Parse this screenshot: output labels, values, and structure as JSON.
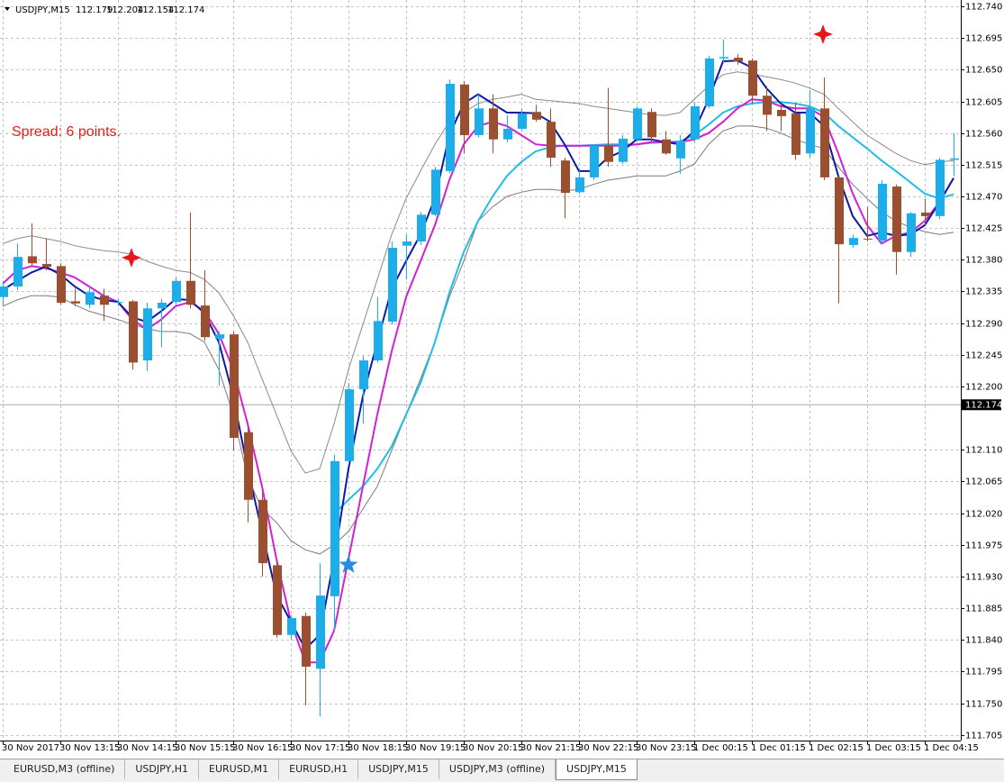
{
  "header": {
    "symbol": "USDJPY,M15",
    "ohlc": [
      112.179,
      112.204,
      112.154,
      112.174
    ]
  },
  "annotation": "Spread: 6 points.",
  "tabs": [
    "EURUSD,M3 (offline)",
    "USDJPY,H1",
    "EURUSD,M1",
    "EURUSD,H1",
    "USDJPY,M15",
    "USDJPY,M3 (offline)",
    "USDJPY,M15"
  ],
  "chart_data": {
    "type": "candlestick",
    "up_color": "#1caeea",
    "down_color": "#9c4f2e",
    "grid": true,
    "ylim": [
      111.697,
      112.749
    ],
    "yticks": [
      {
        "value": 112.74,
        "label": "112.740"
      },
      112.695,
      {
        "value": 112.65,
        "label": "112.650"
      },
      112.605,
      {
        "value": 112.56,
        "label": "112.560"
      },
      112.515,
      {
        "value": 112.47,
        "label": "112.470"
      },
      112.425,
      {
        "value": 112.38,
        "label": "112.380"
      },
      112.335,
      {
        "value": 112.29,
        "label": "112.290"
      },
      112.245,
      {
        "value": 112.2,
        "label": "112.200"
      },
      {
        "value": 112.11,
        "label": "112.110"
      },
      112.065,
      {
        "value": 112.02,
        "label": "112.020"
      },
      111.975,
      {
        "value": 111.93,
        "label": "111.930"
      },
      111.885,
      {
        "value": 111.84,
        "label": "111.840"
      },
      111.795,
      {
        "value": 111.75,
        "label": "111.750"
      },
      111.705
    ],
    "last_price": 112.174,
    "categories": [
      "30 Nov 2017",
      null,
      null,
      null,
      "30 Nov 13:15",
      null,
      null,
      null,
      "30 Nov 14:15",
      null,
      null,
      null,
      "30 Nov 15:15",
      null,
      null,
      null,
      "30 Nov 16:15",
      null,
      null,
      null,
      "30 Nov 17:15",
      null,
      null,
      null,
      "30 Nov 18:15",
      null,
      null,
      null,
      "30 Nov 19:15",
      null,
      null,
      null,
      "30 Nov 20:15",
      null,
      null,
      null,
      "30 Nov 21:15",
      null,
      null,
      null,
      "30 Nov 22:15",
      null,
      null,
      null,
      "30 Nov 23:15",
      null,
      null,
      null,
      "1 Dec 00:15",
      null,
      null,
      null,
      "1 Dec 01:15",
      null,
      null,
      null,
      "1 Dec 02:15",
      null,
      null,
      null,
      "1 Dec 03:15",
      null,
      null,
      null,
      "1 Dec 04:15",
      null,
      null
    ],
    "open": [
      112.327,
      112.342,
      112.385,
      112.374,
      112.371,
      112.321,
      112.316,
      112.329,
      112.319,
      112.321,
      112.237,
      112.311,
      112.32,
      112.35,
      112.315,
      112.268,
      112.274,
      112.135,
      112.039,
      111.946,
      111.847,
      111.874,
      111.799,
      111.902,
      112.094,
      112.196,
      112.237,
      112.292,
      112.4,
      112.406,
      112.444,
      112.506,
      112.629,
      112.557,
      112.595,
      112.551,
      112.566,
      112.59,
      112.576,
      112.521,
      112.476,
      112.497,
      112.542,
      112.519,
      112.551,
      112.59,
      112.551,
      112.524,
      112.551,
      112.598,
      112.666,
      112.667,
      112.663,
      112.613,
      112.593,
      112.588,
      112.531,
      112.595,
      112.497,
      112.401,
      112.41,
      112.407,
      112.484,
      112.391,
      112.447,
      112.442,
      112.522
    ],
    "high": [
      112.35,
      112.403,
      112.432,
      112.41,
      112.375,
      112.339,
      112.342,
      112.339,
      112.324,
      112.323,
      112.319,
      112.324,
      112.355,
      112.447,
      112.365,
      112.278,
      112.278,
      112.141,
      112.051,
      111.953,
      111.875,
      111.879,
      111.949,
      112.103,
      112.205,
      112.243,
      112.327,
      112.406,
      112.416,
      112.448,
      112.512,
      112.636,
      112.634,
      112.615,
      112.615,
      112.585,
      112.595,
      112.6,
      112.595,
      112.525,
      112.506,
      112.544,
      112.624,
      112.557,
      112.598,
      112.595,
      112.563,
      112.557,
      112.604,
      112.67,
      112.693,
      112.672,
      112.666,
      112.627,
      112.602,
      112.602,
      112.621,
      112.639,
      112.499,
      112.416,
      112.455,
      112.493,
      112.487,
      112.448,
      112.467,
      112.525,
      112.56
    ],
    "low": [
      112.314,
      112.337,
      112.371,
      112.365,
      112.316,
      112.314,
      112.311,
      112.293,
      112.314,
      112.224,
      112.222,
      112.256,
      112.316,
      112.311,
      112.265,
      112.201,
      112.109,
      112.007,
      111.93,
      111.843,
      111.84,
      111.747,
      111.731,
      111.853,
      112.09,
      112.147,
      112.234,
      112.288,
      112.352,
      112.401,
      112.442,
      112.503,
      112.531,
      112.554,
      112.531,
      112.547,
      112.563,
      112.576,
      112.512,
      112.439,
      112.474,
      112.493,
      112.512,
      112.516,
      112.548,
      112.547,
      112.529,
      112.502,
      112.547,
      112.595,
      112.659,
      112.657,
      112.602,
      112.563,
      112.563,
      112.522,
      112.525,
      112.493,
      112.318,
      112.397,
      112.406,
      112.403,
      112.359,
      112.384,
      112.429,
      112.438,
      112.499
    ],
    "close": [
      112.342,
      112.384,
      112.375,
      112.37,
      112.319,
      112.318,
      112.334,
      112.316,
      112.32,
      112.234,
      112.311,
      112.319,
      112.35,
      112.316,
      112.27,
      112.274,
      112.127,
      112.039,
      111.949,
      111.847,
      111.871,
      111.802,
      111.903,
      112.094,
      112.196,
      112.237,
      112.293,
      112.397,
      112.406,
      112.444,
      112.508,
      112.63,
      112.557,
      112.595,
      112.551,
      112.566,
      112.588,
      112.579,
      112.525,
      112.475,
      112.497,
      112.542,
      112.519,
      112.552,
      112.595,
      112.554,
      112.531,
      112.549,
      112.598,
      112.666,
      112.668,
      112.662,
      112.613,
      112.586,
      112.584,
      112.529,
      112.595,
      112.497,
      112.402,
      112.411,
      112.409,
      112.488,
      112.391,
      112.446,
      112.442,
      112.522,
      112.524
    ],
    "series": [
      {
        "color": "#8a8a8a",
        "values": [
          112.403,
          112.41,
          112.414,
          112.41,
          112.406,
          112.4,
          112.396,
          112.393,
          112.391,
          112.388,
          112.378,
          112.371,
          112.365,
          112.362,
          112.352,
          112.333,
          112.301,
          112.263,
          112.211,
          112.16,
          112.109,
          112.077,
          112.083,
          112.147,
          112.224,
          112.288,
          112.352,
          112.416,
          112.467,
          112.506,
          112.544,
          112.576,
          112.589,
          112.602,
          112.608,
          112.611,
          112.615,
          112.608,
          112.606,
          112.604,
          112.602,
          112.598,
          112.595,
          112.592,
          112.589,
          112.586,
          112.585,
          112.589,
          112.608,
          112.627,
          112.643,
          112.647,
          112.644,
          112.64,
          112.636,
          112.631,
          112.624,
          112.615,
          112.595,
          112.576,
          112.557,
          112.544,
          112.531,
          112.521,
          112.515,
          112.519,
          112.521
        ]
      },
      {
        "color": "#7a7a7a",
        "values": [
          112.314,
          112.323,
          112.329,
          112.329,
          112.327,
          112.316,
          112.307,
          112.301,
          112.295,
          112.288,
          112.282,
          112.278,
          112.278,
          112.275,
          112.263,
          112.224,
          112.16,
          112.071,
          112.026,
          112.007,
          111.981,
          111.968,
          111.962,
          111.975,
          111.994,
          112.026,
          112.058,
          112.109,
          112.16,
          112.211,
          112.263,
          112.327,
          112.378,
          112.435,
          112.455,
          112.47,
          112.476,
          112.48,
          112.48,
          112.478,
          112.48,
          112.487,
          112.493,
          112.496,
          112.499,
          112.499,
          112.499,
          112.506,
          112.516,
          112.544,
          112.563,
          112.57,
          112.57,
          112.567,
          112.56,
          112.551,
          112.544,
          112.538,
          112.512,
          112.487,
          112.467,
          112.448,
          112.435,
          112.426,
          112.42,
          112.416,
          112.419
        ]
      },
      {
        "color": "#22bde2",
        "values": [
          null,
          null,
          null,
          null,
          null,
          null,
          null,
          null,
          null,
          null,
          null,
          null,
          null,
          null,
          null,
          null,
          null,
          null,
          null,
          null,
          null,
          null,
          null,
          112.019,
          112.039,
          112.058,
          112.083,
          112.115,
          112.16,
          112.205,
          112.263,
          112.333,
          112.391,
          112.435,
          112.47,
          112.499,
          112.519,
          112.534,
          112.54,
          112.542,
          112.542,
          112.543,
          112.544,
          112.544,
          112.544,
          112.546,
          112.547,
          112.548,
          112.557,
          112.572,
          112.589,
          112.598,
          112.602,
          112.604,
          112.604,
          112.602,
          112.598,
          112.589,
          112.57,
          112.554,
          112.538,
          112.521,
          112.506,
          112.49,
          112.474,
          112.467,
          112.473
        ]
      },
      {
        "color": "#d41fd4",
        "values": [
          112.346,
          112.365,
          112.371,
          112.368,
          112.362,
          112.355,
          112.342,
          112.329,
          112.32,
          112.295,
          112.281,
          112.295,
          112.314,
          112.32,
          112.307,
          112.275,
          112.224,
          112.147,
          112.058,
          111.955,
          111.866,
          111.808,
          111.808,
          111.853,
          111.955,
          112.058,
          112.16,
          112.25,
          112.327,
          112.378,
          112.429,
          112.493,
          112.544,
          112.57,
          112.576,
          112.57,
          112.557,
          112.544,
          112.542,
          112.542,
          112.542,
          112.542,
          112.542,
          112.542,
          112.544,
          112.547,
          112.547,
          112.547,
          112.551,
          112.56,
          112.576,
          112.595,
          112.608,
          112.606,
          112.598,
          112.595,
          112.595,
          112.583,
          112.531,
          112.474,
          112.429,
          112.403,
          112.414,
          112.419,
          112.435,
          112.461,
          112.496
        ]
      },
      {
        "color": "#0c1aa6",
        "values": [
          112.337,
          112.35,
          112.362,
          112.37,
          112.359,
          112.342,
          112.329,
          112.323,
          112.32,
          112.298,
          112.292,
          112.307,
          112.324,
          112.323,
          112.304,
          112.263,
          112.186,
          112.083,
          111.994,
          111.904,
          111.866,
          111.827,
          111.847,
          111.955,
          112.083,
          112.186,
          112.263,
          112.339,
          112.378,
          112.416,
          112.467,
          112.557,
          112.602,
          112.615,
          112.602,
          112.589,
          112.589,
          112.588,
          112.576,
          112.544,
          112.506,
          112.506,
          112.525,
          112.534,
          112.551,
          112.551,
          112.547,
          112.544,
          112.563,
          112.608,
          112.662,
          112.663,
          112.653,
          112.624,
          112.602,
          112.589,
          112.589,
          112.57,
          112.499,
          112.442,
          112.414,
          112.419,
          112.414,
          112.416,
          112.429,
          112.461,
          112.496
        ]
      }
    ]
  }
}
